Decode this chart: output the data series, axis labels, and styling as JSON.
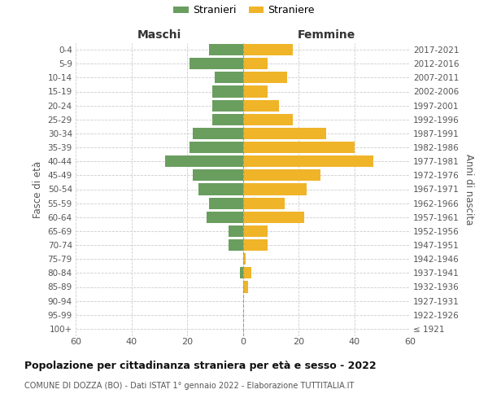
{
  "age_groups": [
    "100+",
    "95-99",
    "90-94",
    "85-89",
    "80-84",
    "75-79",
    "70-74",
    "65-69",
    "60-64",
    "55-59",
    "50-54",
    "45-49",
    "40-44",
    "35-39",
    "30-34",
    "25-29",
    "20-24",
    "15-19",
    "10-14",
    "5-9",
    "0-4"
  ],
  "birth_years": [
    "≤ 1921",
    "1922-1926",
    "1927-1931",
    "1932-1936",
    "1937-1941",
    "1942-1946",
    "1947-1951",
    "1952-1956",
    "1957-1961",
    "1962-1966",
    "1967-1971",
    "1972-1976",
    "1977-1981",
    "1982-1986",
    "1987-1991",
    "1992-1996",
    "1997-2001",
    "2002-2006",
    "2007-2011",
    "2012-2016",
    "2017-2021"
  ],
  "maschi": [
    0,
    0,
    0,
    0,
    1,
    0,
    5,
    5,
    13,
    12,
    16,
    18,
    28,
    19,
    18,
    11,
    11,
    11,
    10,
    19,
    12
  ],
  "femmine": [
    0,
    0,
    0,
    2,
    3,
    1,
    9,
    9,
    22,
    15,
    23,
    28,
    47,
    40,
    30,
    18,
    13,
    9,
    16,
    9,
    18
  ],
  "maschi_color": "#6a9e5f",
  "femmine_color": "#f0b429",
  "background_color": "#ffffff",
  "grid_color": "#cccccc",
  "title": "Popolazione per cittadinanza straniera per età e sesso - 2022",
  "subtitle": "COMUNE DI DOZZA (BO) - Dati ISTAT 1° gennaio 2022 - Elaborazione TUTTITALIA.IT",
  "xlabel_left": "Maschi",
  "xlabel_right": "Femmine",
  "ylabel_left": "Fasce di età",
  "ylabel_right": "Anni di nascita",
  "legend_stranieri": "Stranieri",
  "legend_straniere": "Straniere",
  "xlim": 60
}
